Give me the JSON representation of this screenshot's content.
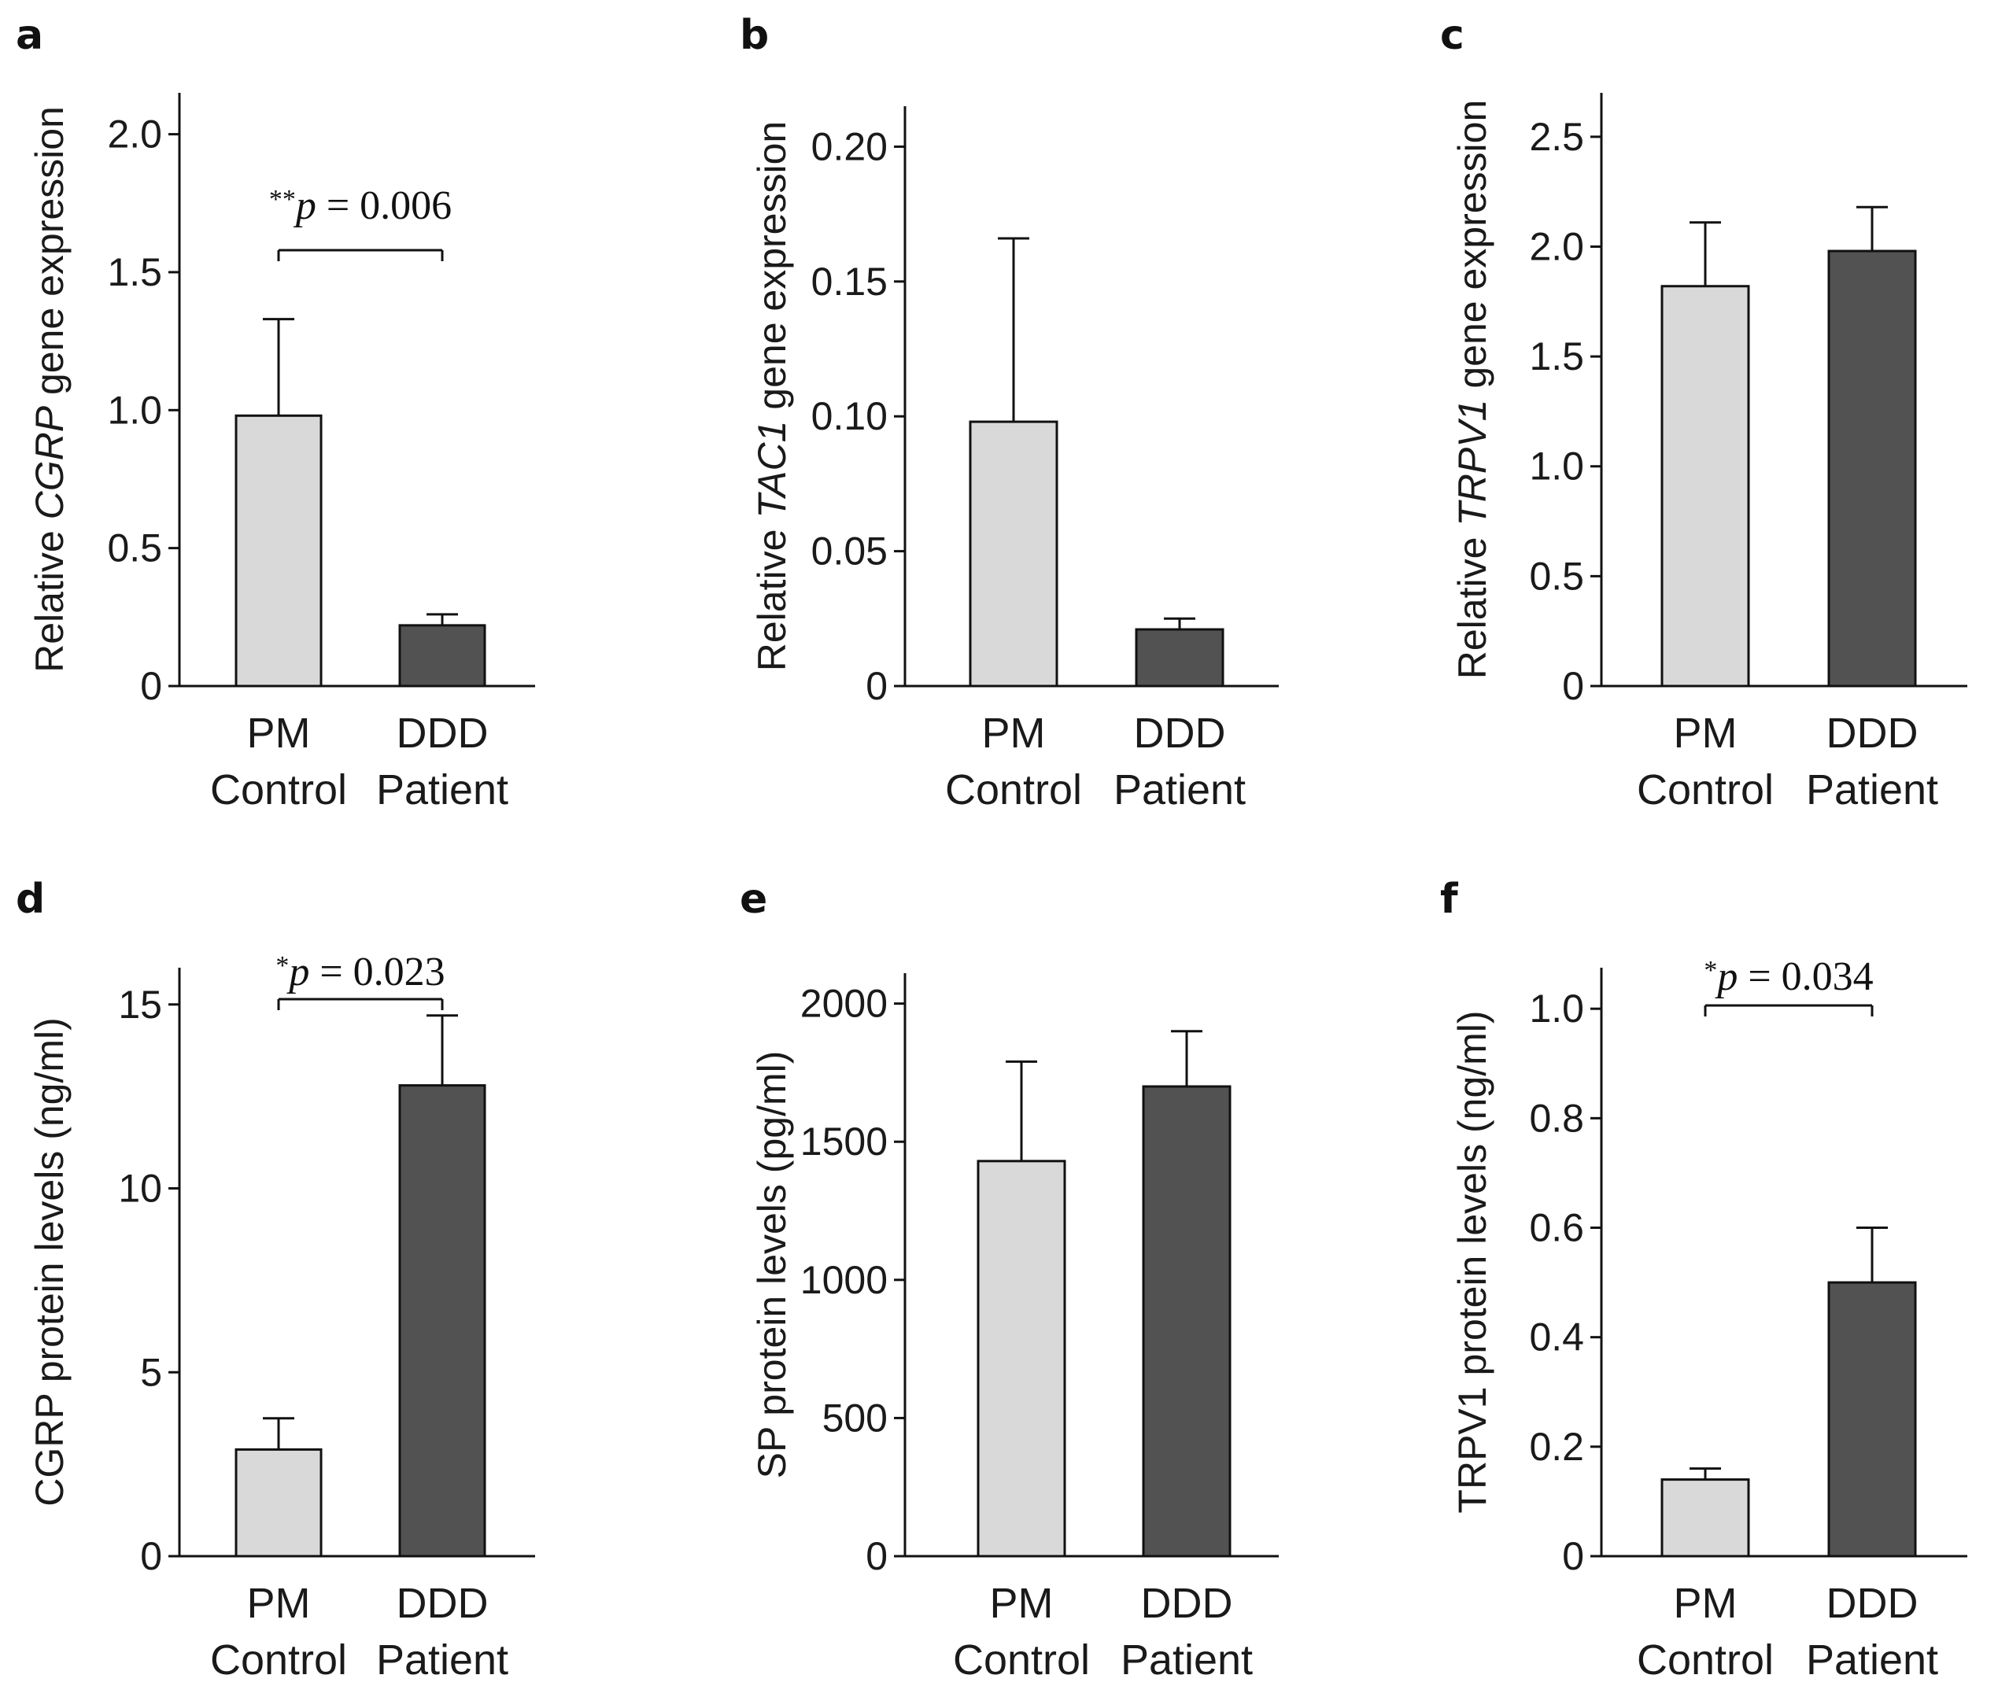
{
  "figure": {
    "colors": {
      "control": "#d9d9d9",
      "patient": "#525252",
      "stroke": "#111111"
    }
  },
  "panels": [
    {
      "letter": "a",
      "ylabel_pre": "Relative ",
      "ylabel_gene": "CGRP",
      "ylabel_post": " gene expression",
      "ylabel_plain": "",
      "ticks": [
        "0",
        "0.5",
        "1.0",
        "1.5",
        "2.0"
      ],
      "tick_values": [
        0,
        0.5,
        1.0,
        1.5,
        2.0
      ],
      "categories": [
        [
          "PM",
          "Control"
        ],
        [
          "DDD",
          "Patient"
        ]
      ],
      "sig": {
        "stars": "**",
        "p": "p",
        "eq": " = 0.006"
      }
    },
    {
      "letter": "b",
      "ylabel_pre": "Relative ",
      "ylabel_gene": "TAC1",
      "ylabel_post": " gene expression",
      "ylabel_plain": "",
      "ticks": [
        "0",
        "0.05",
        "0.10",
        "0.15",
        "0.20"
      ],
      "tick_values": [
        0,
        0.05,
        0.1,
        0.15,
        0.2
      ],
      "categories": [
        [
          "PM",
          "Control"
        ],
        [
          "DDD",
          "Patient"
        ]
      ],
      "sig": null
    },
    {
      "letter": "c",
      "ylabel_pre": "Relative ",
      "ylabel_gene": "TRPV1",
      "ylabel_post": " gene expression",
      "ylabel_plain": "",
      "ticks": [
        "0",
        "0.5",
        "1.0",
        "1.5",
        "2.0",
        "2.5"
      ],
      "tick_values": [
        0,
        0.5,
        1.0,
        1.5,
        2.0,
        2.5
      ],
      "categories": [
        [
          "PM",
          "Control"
        ],
        [
          "DDD",
          "Patient"
        ]
      ],
      "sig": null
    },
    {
      "letter": "d",
      "ylabel_pre": "",
      "ylabel_gene": "",
      "ylabel_post": "",
      "ylabel_plain": "CGRP protein levels  (ng/ml)",
      "ticks": [
        "0",
        "5",
        "10",
        "15"
      ],
      "tick_values": [
        0,
        5,
        10,
        15
      ],
      "categories": [
        [
          "PM",
          "Control"
        ],
        [
          "DDD",
          "Patient"
        ]
      ],
      "sig": {
        "stars": "*",
        "p": "p",
        "eq": " = 0.023"
      }
    },
    {
      "letter": "e",
      "ylabel_pre": "",
      "ylabel_gene": "",
      "ylabel_post": "",
      "ylabel_plain": "SP protein levels (pg/ml)",
      "ticks": [
        "0",
        "500",
        "1000",
        "1500",
        "2000"
      ],
      "tick_values": [
        0,
        500,
        1000,
        1500,
        2000
      ],
      "categories": [
        [
          "PM",
          "Control"
        ],
        [
          "DDD",
          "Patient"
        ]
      ],
      "sig": null
    },
    {
      "letter": "f",
      "ylabel_pre": "",
      "ylabel_gene": "",
      "ylabel_post": "",
      "ylabel_plain": "TRPV1 protein levels  (ng/ml)",
      "ticks": [
        "0",
        "0.2",
        "0.4",
        "0.6",
        "0.8",
        "1.0"
      ],
      "tick_values": [
        0,
        0.2,
        0.4,
        0.6,
        0.8,
        1.0
      ],
      "categories": [
        [
          "PM",
          "Control"
        ],
        [
          "DDD",
          "Patient"
        ]
      ],
      "sig": {
        "stars": "*",
        "p": "p",
        "eq": " = 0.034"
      }
    }
  ],
  "chart_data": [
    {
      "panel": "a",
      "type": "bar",
      "title": "",
      "xlabel": "",
      "ylabel": "Relative CGRP gene expression",
      "categories": [
        "PM Control",
        "DDD Patient"
      ],
      "values": [
        0.98,
        0.22
      ],
      "error": [
        0.35,
        0.04
      ],
      "ylim": [
        0,
        2.15
      ],
      "annotation": "**p = 0.006"
    },
    {
      "panel": "b",
      "type": "bar",
      "title": "",
      "xlabel": "",
      "ylabel": "Relative TAC1 gene expression",
      "categories": [
        "PM Control",
        "DDD Patient"
      ],
      "values": [
        0.098,
        0.021
      ],
      "error": [
        0.068,
        0.004
      ],
      "ylim": [
        0,
        0.215
      ]
    },
    {
      "panel": "c",
      "type": "bar",
      "title": "",
      "xlabel": "",
      "ylabel": "Relative TRPV1 gene expression",
      "categories": [
        "PM Control",
        "DDD Patient"
      ],
      "values": [
        1.82,
        1.98
      ],
      "error": [
        0.29,
        0.2
      ],
      "ylim": [
        0,
        2.7
      ]
    },
    {
      "panel": "d",
      "type": "bar",
      "title": "",
      "xlabel": "",
      "ylabel": "CGRP protein levels (ng/ml)",
      "categories": [
        "PM Control",
        "DDD Patient"
      ],
      "values": [
        2.9,
        12.8
      ],
      "error": [
        0.85,
        1.9
      ],
      "ylim": [
        0,
        16.0
      ],
      "annotation": "*p = 0.023"
    },
    {
      "panel": "e",
      "type": "bar",
      "title": "",
      "xlabel": "",
      "ylabel": "SP protein levels (pg/ml)",
      "categories": [
        "PM Control",
        "DDD Patient"
      ],
      "values": [
        1430,
        1700
      ],
      "error": [
        360,
        200
      ],
      "ylim": [
        0,
        2110
      ]
    },
    {
      "panel": "f",
      "type": "bar",
      "title": "",
      "xlabel": "",
      "ylabel": "TRPV1 protein levels (ng/ml)",
      "categories": [
        "PM Control",
        "DDD Patient"
      ],
      "values": [
        0.14,
        0.5
      ],
      "error": [
        0.02,
        0.1
      ],
      "ylim": [
        0,
        1.075
      ],
      "annotation": "*p = 0.034"
    }
  ]
}
